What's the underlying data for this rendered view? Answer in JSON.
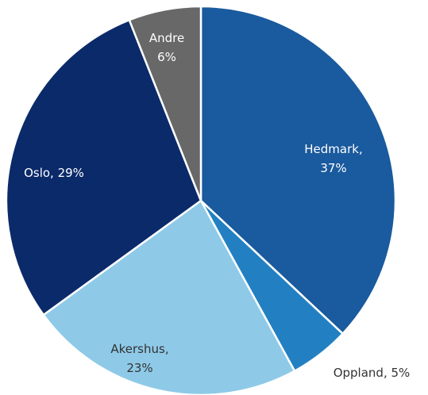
{
  "chart_data": {
    "type": "pie",
    "values": [
      37,
      5,
      23,
      29,
      6
    ],
    "value_labels": [
      [
        "Hedmark,",
        "37%"
      ],
      [
        "Oppland, 5%"
      ],
      [
        "Akershus,",
        "23%"
      ],
      [
        "Oslo, 29%"
      ],
      [
        "Andre",
        "6%"
      ]
    ],
    "colors": [
      "#1a5a9e",
      "#2280c2",
      "#8ecae8",
      "#0b2a6a",
      "#686868"
    ],
    "start_angle": 0,
    "direction": "clockwise"
  }
}
